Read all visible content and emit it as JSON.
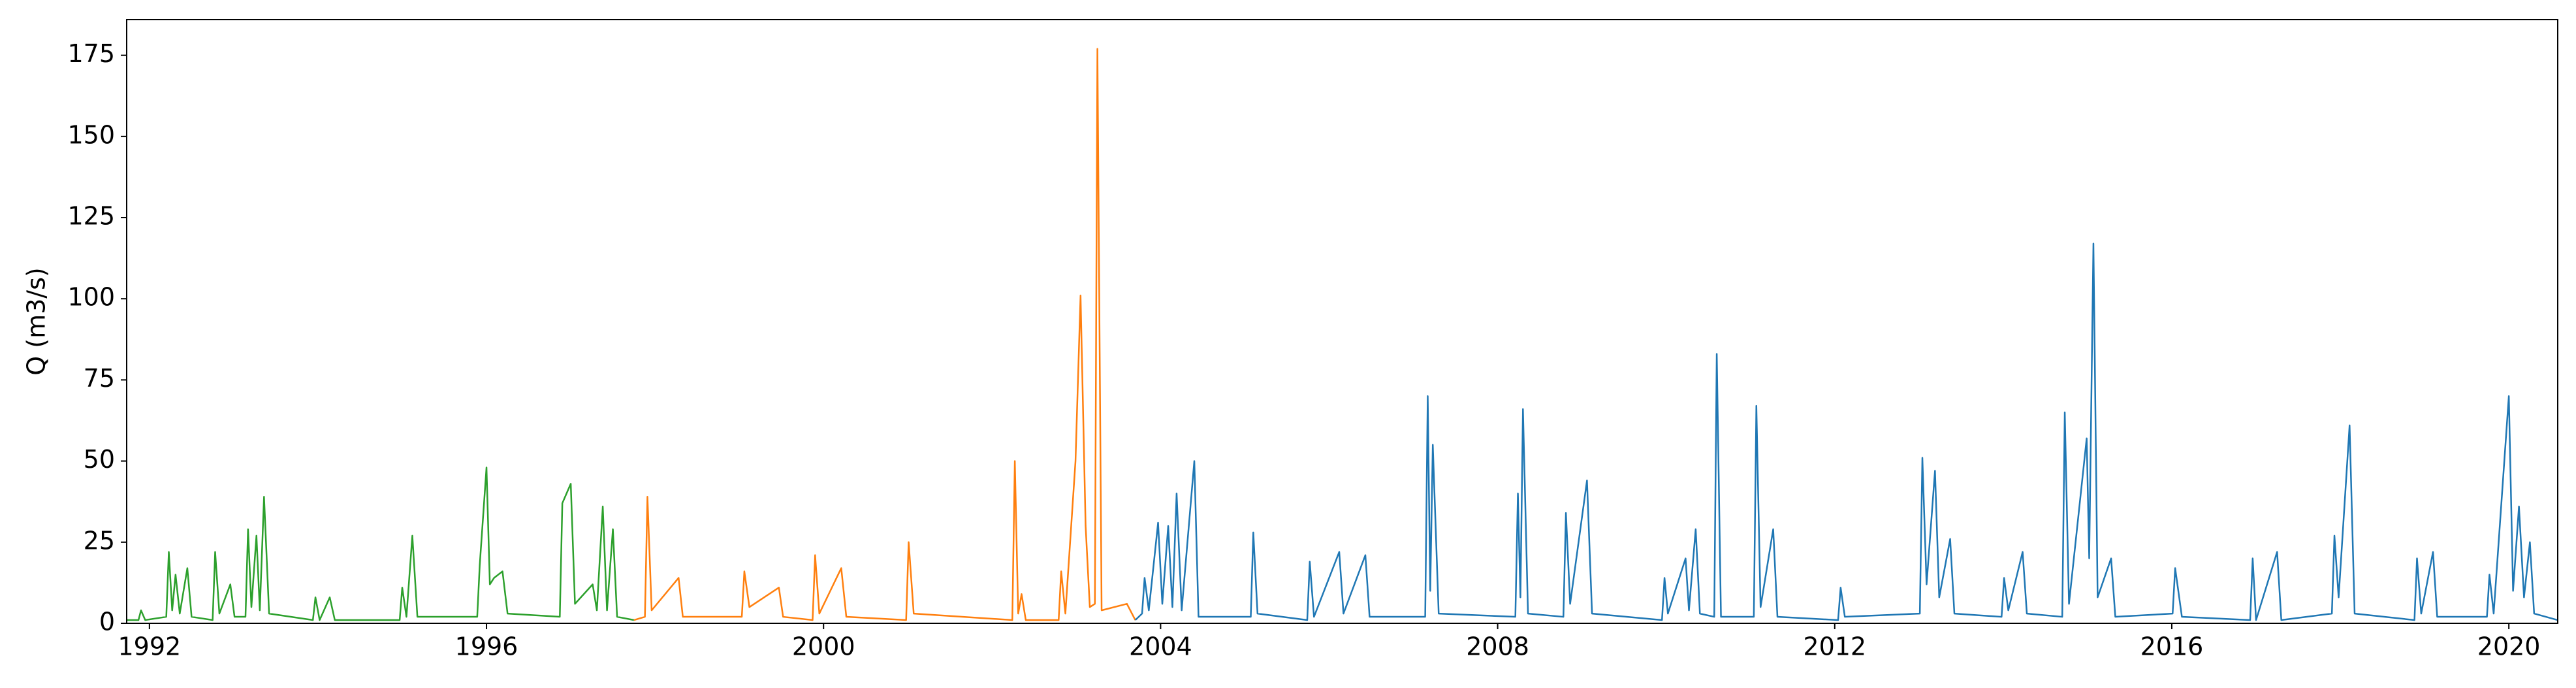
{
  "chart_data": {
    "type": "line",
    "ylabel": "Q (m3/s)",
    "xlim": [
      1991.73,
      2020.58
    ],
    "xticks": [
      1992,
      1996,
      2000,
      2004,
      2008,
      2012,
      2016,
      2020
    ],
    "ylim": [
      0,
      186
    ],
    "yticks": [
      0,
      25,
      50,
      75,
      100,
      125,
      150,
      175
    ],
    "series": [
      {
        "color": "#2ca02c",
        "x": [
          1991.73,
          1991.87,
          1991.9,
          1991.95,
          1992.2,
          1992.23,
          1992.27,
          1992.31,
          1992.36,
          1992.45,
          1992.5,
          1992.75,
          1992.78,
          1992.83,
          1992.96,
          1993.01,
          1993.14,
          1993.17,
          1993.21,
          1993.27,
          1993.31,
          1993.36,
          1993.42,
          1993.94,
          1993.97,
          1994.02,
          1994.14,
          1994.2,
          1994.97,
          1995.0,
          1995.05,
          1995.12,
          1995.18,
          1995.89,
          1995.92,
          1996.0,
          1996.04,
          1996.09,
          1996.19,
          1996.25,
          1996.87,
          1996.9,
          1997.0,
          1997.05,
          1997.26,
          1997.31,
          1997.38,
          1997.43,
          1997.5,
          1997.55,
          1997.75
        ],
        "values": [
          1,
          1,
          4,
          1,
          2,
          22,
          4,
          15,
          3,
          17,
          2,
          1,
          22,
          3,
          12,
          2,
          2,
          29,
          5,
          27,
          4,
          39,
          3,
          1,
          8,
          1,
          8,
          1,
          1,
          11,
          2,
          27,
          2,
          2,
          18,
          48,
          12,
          14,
          16,
          3,
          2,
          37,
          43,
          6,
          12,
          4,
          36,
          4,
          29,
          2,
          1
        ]
      },
      {
        "color": "#ff7f0e",
        "x": [
          1997.75,
          1997.88,
          1997.91,
          1997.96,
          1998.28,
          1998.33,
          1999.03,
          1999.06,
          1999.12,
          1999.47,
          1999.52,
          1999.87,
          1999.9,
          1999.95,
          2000.21,
          2000.27,
          2000.98,
          2001.01,
          2001.07,
          2002.24,
          2002.27,
          2002.31,
          2002.35,
          2002.4,
          2002.79,
          2002.82,
          2002.87,
          2002.99,
          2003.05,
          2003.11,
          2003.16,
          2003.22,
          2003.25,
          2003.3,
          2003.6,
          2003.7
        ],
        "values": [
          1,
          2,
          39,
          4,
          14,
          2,
          2,
          16,
          5,
          11,
          2,
          1,
          21,
          3,
          17,
          2,
          1,
          25,
          3,
          1,
          50,
          3,
          9,
          1,
          1,
          16,
          3,
          50,
          101,
          30,
          5,
          6,
          177,
          4,
          6,
          1
        ]
      },
      {
        "color": "#1f77b4",
        "x": [
          2003.7,
          2003.78,
          2003.81,
          2003.86,
          2003.97,
          2004.02,
          2004.09,
          2004.14,
          2004.19,
          2004.25,
          2004.4,
          2004.45,
          2005.07,
          2005.1,
          2005.15,
          2005.74,
          2005.77,
          2005.82,
          2006.12,
          2006.17,
          2006.43,
          2006.48,
          2007.14,
          2007.17,
          2007.2,
          2007.23,
          2007.3,
          2008.21,
          2008.24,
          2008.27,
          2008.3,
          2008.36,
          2008.78,
          2008.81,
          2008.86,
          2009.06,
          2009.12,
          2009.95,
          2009.98,
          2010.02,
          2010.23,
          2010.27,
          2010.35,
          2010.4,
          2010.57,
          2010.6,
          2010.65,
          2011.04,
          2011.07,
          2011.12,
          2011.27,
          2011.32,
          2012.04,
          2012.07,
          2012.12,
          2013.01,
          2013.04,
          2013.09,
          2013.19,
          2013.24,
          2013.37,
          2013.42,
          2013.98,
          2014.01,
          2014.06,
          2014.23,
          2014.28,
          2014.7,
          2014.73,
          2014.78,
          2014.99,
          2015.02,
          2015.07,
          2015.12,
          2015.28,
          2015.33,
          2016.01,
          2016.04,
          2016.12,
          2016.93,
          2016.96,
          2017.0,
          2017.25,
          2017.3,
          2017.9,
          2017.93,
          2017.98,
          2018.11,
          2018.17,
          2018.88,
          2018.91,
          2018.96,
          2019.1,
          2019.15,
          2019.74,
          2019.77,
          2019.82,
          2020.0,
          2020.05,
          2020.12,
          2020.18,
          2020.25,
          2020.3,
          2020.58
        ],
        "values": [
          1,
          3,
          14,
          4,
          31,
          6,
          30,
          5,
          40,
          4,
          50,
          2,
          2,
          28,
          3,
          1,
          19,
          2,
          22,
          3,
          21,
          2,
          2,
          70,
          10,
          55,
          3,
          2,
          40,
          8,
          66,
          3,
          2,
          34,
          6,
          44,
          3,
          1,
          14,
          3,
          20,
          4,
          29,
          3,
          2,
          83,
          2,
          2,
          67,
          5,
          29,
          2,
          1,
          11,
          2,
          3,
          51,
          12,
          47,
          8,
          26,
          3,
          2,
          14,
          4,
          22,
          3,
          2,
          65,
          6,
          57,
          20,
          117,
          8,
          20,
          2,
          3,
          17,
          2,
          1,
          20,
          1,
          22,
          1,
          3,
          27,
          8,
          61,
          3,
          1,
          20,
          3,
          22,
          2,
          2,
          15,
          3,
          70,
          10,
          36,
          8,
          25,
          3,
          1
        ]
      }
    ]
  }
}
